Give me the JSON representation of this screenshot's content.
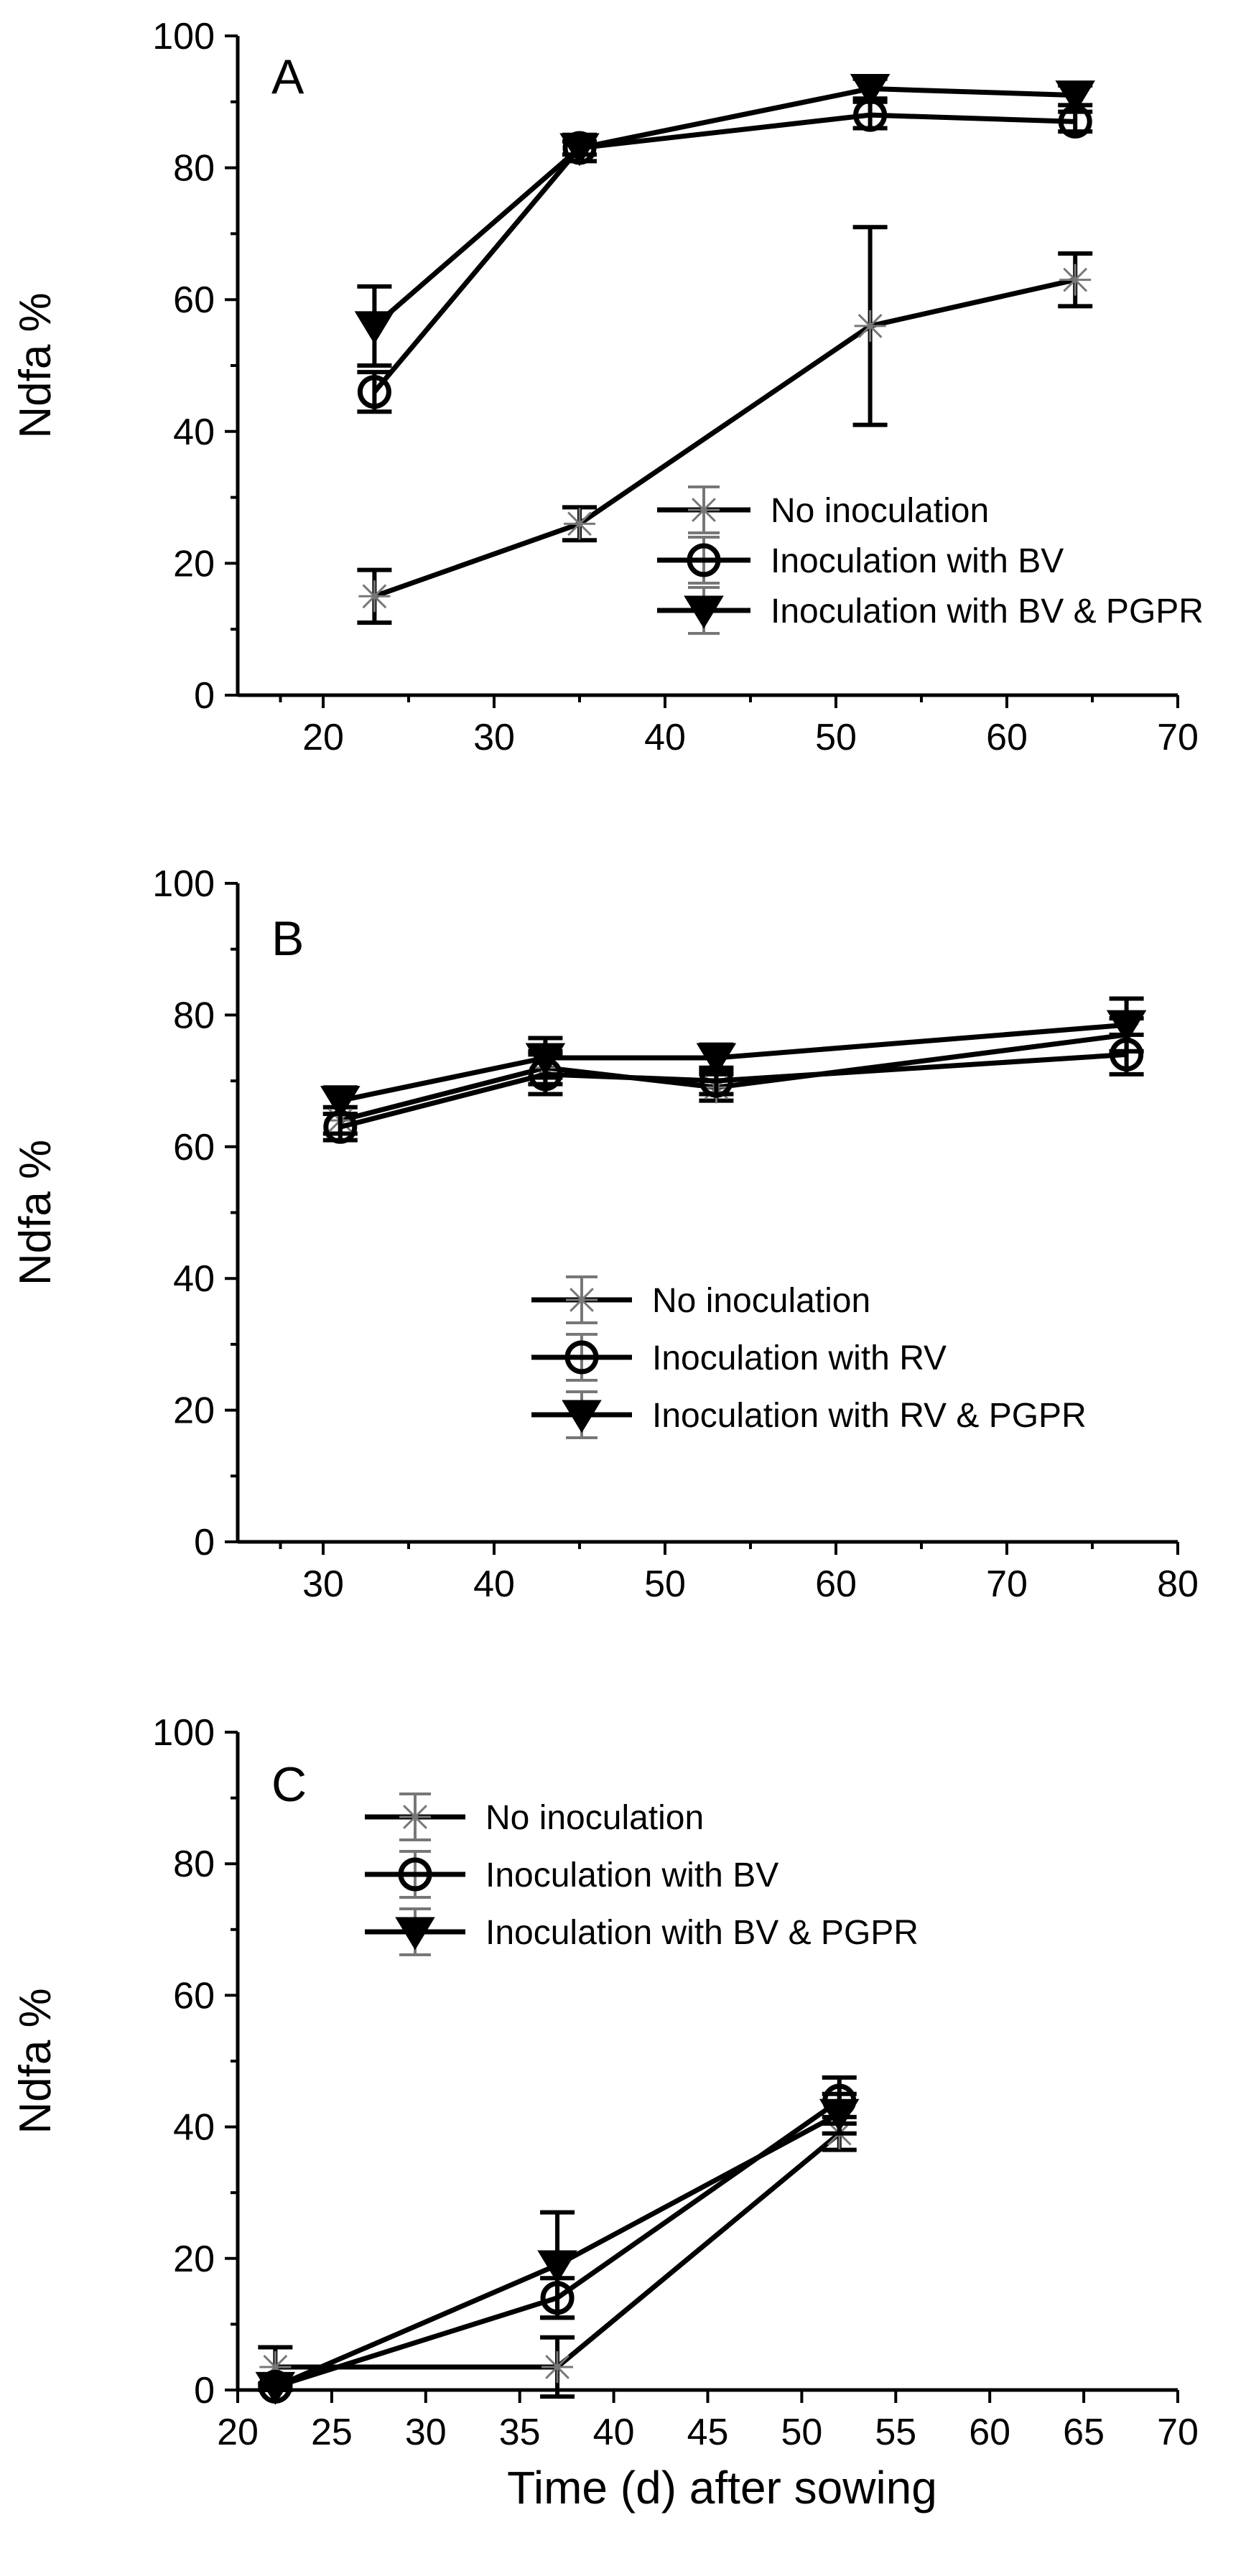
{
  "chart_data": [
    {
      "type": "line",
      "panel": "A",
      "title": "",
      "xlabel": "",
      "ylabel": "Ndfa %",
      "xlim": [
        15,
        70
      ],
      "ylim": [
        0,
        100
      ],
      "xticks": [
        20,
        30,
        40,
        50,
        60,
        70
      ],
      "xtick_labels": [
        "20",
        "30",
        "40",
        "50",
        "60",
        "70"
      ],
      "yticks": [
        0,
        20,
        40,
        60,
        80,
        100
      ],
      "ytick_labels": [
        "0",
        "20",
        "40",
        "60",
        "80",
        "100"
      ],
      "legend_position": "lower-right",
      "series": [
        {
          "name": "No inoculation",
          "marker": "star",
          "x": [
            23,
            35,
            52,
            64
          ],
          "y": [
            15,
            26,
            56,
            63
          ],
          "err": [
            4,
            2.5,
            15,
            4
          ]
        },
        {
          "name": "Inoculation with BV",
          "marker": "circle",
          "x": [
            23,
            35,
            52,
            64
          ],
          "y": [
            46,
            83,
            88,
            87
          ],
          "err": [
            3,
            1,
            2,
            1.5
          ]
        },
        {
          "name": "Inoculation with BV & PGPR",
          "marker": "triangle-down",
          "x": [
            23,
            35,
            52,
            64
          ],
          "y": [
            56,
            83,
            92,
            91
          ],
          "err": [
            6,
            2,
            1.5,
            1.5
          ]
        }
      ]
    },
    {
      "type": "line",
      "panel": "B",
      "title": "",
      "xlabel": "",
      "ylabel": "Ndfa %",
      "xlim": [
        25,
        80
      ],
      "ylim": [
        0,
        100
      ],
      "xticks": [
        30,
        40,
        50,
        60,
        70,
        80
      ],
      "xtick_labels": [
        "30",
        "40",
        "50",
        "60",
        "70",
        "80"
      ],
      "yticks": [
        0,
        20,
        40,
        60,
        80,
        100
      ],
      "ytick_labels": [
        "0",
        "20",
        "40",
        "60",
        "80",
        "100"
      ],
      "legend_position": "lower-center",
      "series": [
        {
          "name": "No inoculation",
          "marker": "star",
          "x": [
            31,
            43,
            53,
            77
          ],
          "y": [
            64,
            72,
            69,
            77
          ],
          "err": [
            2,
            2.5,
            2,
            2.5
          ]
        },
        {
          "name": "Inoculation with RV",
          "marker": "circle",
          "x": [
            31,
            43,
            53,
            77
          ],
          "y": [
            63,
            71,
            70,
            74
          ],
          "err": [
            2,
            3,
            2,
            3
          ]
        },
        {
          "name": "Inoculation with RV & PGPR",
          "marker": "triangle-down",
          "x": [
            31,
            43,
            53,
            77
          ],
          "y": [
            67,
            73.5,
            73.5,
            78.5
          ],
          "err": [
            2,
            3,
            2,
            4
          ]
        }
      ]
    },
    {
      "type": "line",
      "panel": "C",
      "title": "",
      "xlabel": "Time (d) after sowing",
      "ylabel": "Ndfa %",
      "xlim": [
        20,
        70
      ],
      "ylim": [
        0,
        100
      ],
      "xticks": [
        20,
        25,
        30,
        35,
        40,
        45,
        50,
        55,
        60,
        65,
        70
      ],
      "xtick_labels": [
        "20",
        "25",
        "30",
        "35",
        "40",
        "45",
        "50",
        "55",
        "60",
        "65",
        "70"
      ],
      "yticks": [
        0,
        20,
        40,
        60,
        80,
        100
      ],
      "ytick_labels": [
        "0",
        "20",
        "40",
        "60",
        "80",
        "100"
      ],
      "legend_position": "top-left",
      "series": [
        {
          "name": "No inoculation",
          "marker": "star",
          "x": [
            22,
            37,
            52
          ],
          "y": [
            3.5,
            3.5,
            39
          ],
          "err": [
            3,
            4.5,
            2.5
          ]
        },
        {
          "name": "Inoculation with BV",
          "marker": "circle",
          "x": [
            22,
            37,
            52
          ],
          "y": [
            0.5,
            14,
            44
          ],
          "err": [
            0.5,
            3,
            3.5
          ]
        },
        {
          "name": "Inoculation with BV & PGPR",
          "marker": "triangle-down",
          "x": [
            22,
            37,
            52
          ],
          "y": [
            0.5,
            19,
            42
          ],
          "err": [
            0.5,
            8,
            3
          ]
        }
      ]
    }
  ]
}
